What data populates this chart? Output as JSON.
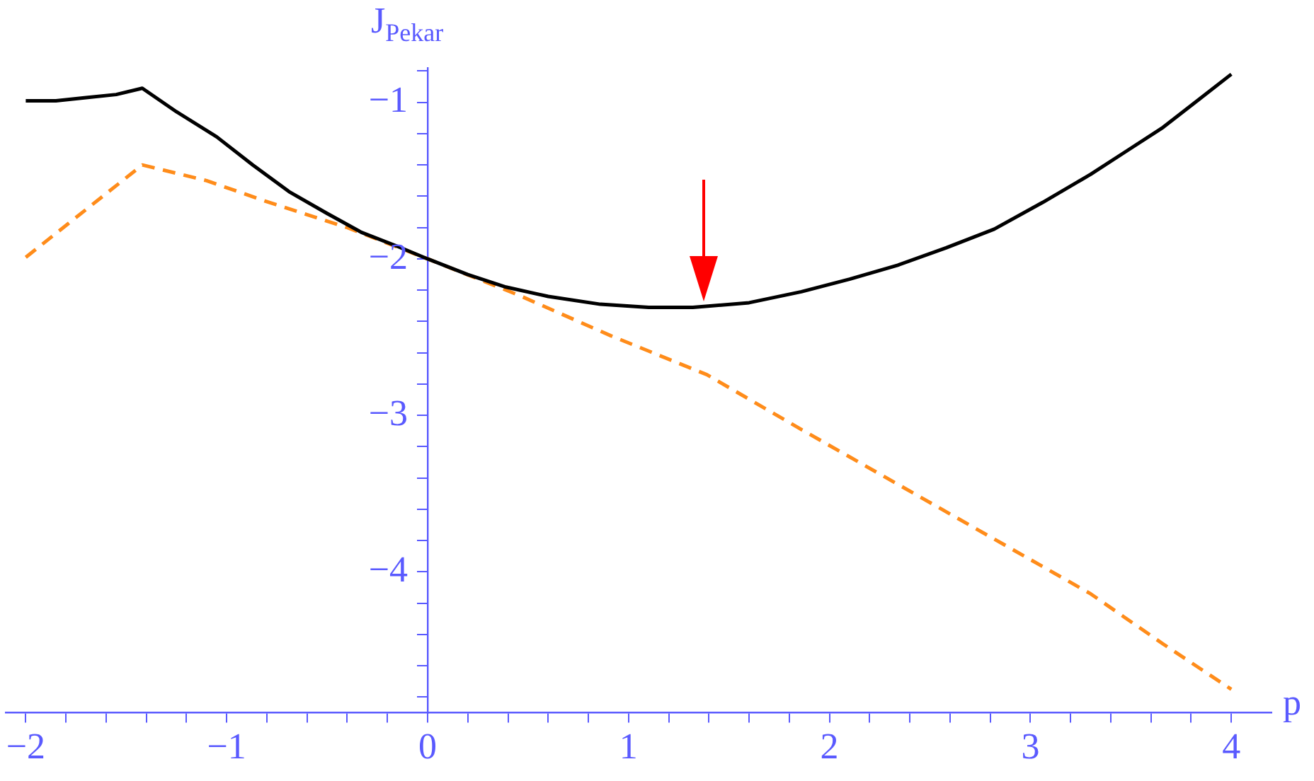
{
  "chart_data": {
    "type": "line",
    "xlabel": "p",
    "ylabel": "J$_{Pekar}$",
    "xlim": [
      -2.1,
      4.2
    ],
    "ylim": [
      -4.9,
      -0.78
    ],
    "xticks": [
      {
        "value": -2,
        "label": "−2"
      },
      {
        "value": -1.8,
        "label": null
      },
      {
        "value": -1.6,
        "label": null
      },
      {
        "value": -1.4,
        "label": null
      },
      {
        "value": -1.2,
        "label": null
      },
      {
        "value": -1,
        "label": "−1"
      },
      {
        "value": -0.8,
        "label": null
      },
      {
        "value": -0.6,
        "label": null
      },
      {
        "value": -0.4,
        "label": null
      },
      {
        "value": -0.2,
        "label": null
      },
      0,
      {
        "value": 0.2,
        "label": null
      },
      {
        "value": 0.4,
        "label": null
      },
      {
        "value": 0.6,
        "label": null
      },
      {
        "value": 0.8,
        "label": null
      },
      1,
      {
        "value": 1.2,
        "label": null
      },
      {
        "value": 1.4,
        "label": null
      },
      {
        "value": 1.6,
        "label": null
      },
      {
        "value": 1.8,
        "label": null
      },
      2,
      {
        "value": 2.2,
        "label": null
      },
      {
        "value": 2.4,
        "label": null
      },
      {
        "value": 2.6,
        "label": null
      },
      {
        "value": 2.8,
        "label": null
      },
      3,
      {
        "value": 3.2,
        "label": null
      },
      {
        "value": 3.4,
        "label": null
      },
      {
        "value": 3.6,
        "label": null
      },
      {
        "value": 3.8,
        "label": null
      },
      4
    ],
    "yticks": [
      {
        "value": -4.8,
        "label": null
      },
      {
        "value": -4.6,
        "label": null
      },
      {
        "value": -4.4,
        "label": null
      },
      {
        "value": -4.2,
        "label": null
      },
      {
        "value": -4,
        "label": "−4"
      },
      {
        "value": -3.8,
        "label": null
      },
      {
        "value": -3.6,
        "label": null
      },
      {
        "value": -3.4,
        "label": null
      },
      {
        "value": -3.2,
        "label": null
      },
      {
        "value": -3,
        "label": "−3"
      },
      {
        "value": -2.8,
        "label": null
      },
      {
        "value": -2.6,
        "label": null
      },
      {
        "value": -2.4,
        "label": null
      },
      {
        "value": -2.2,
        "label": null
      },
      {
        "value": -2,
        "label": "−2"
      },
      {
        "value": -1.8,
        "label": null
      },
      {
        "value": -1.6,
        "label": null
      },
      {
        "value": -1.4,
        "label": null
      },
      {
        "value": -1.2,
        "label": null
      },
      {
        "value": -1,
        "label": "−1"
      },
      {
        "value": -0.8,
        "label": null
      }
    ],
    "grid": false,
    "legend": false,
    "marker": "none",
    "series": [
      {
        "color": "#000000",
        "line_style": "solid",
        "x": [
          -2,
          -1.85,
          -1.7,
          -1.55,
          -1.42,
          -1.25,
          -1.05,
          -0.87,
          -0.69,
          -0.5,
          -0.33,
          -0.15,
          0,
          0.2,
          0.39,
          0.6,
          0.86,
          1.1,
          1.32,
          1.6,
          1.86,
          2.1,
          2.34,
          2.58,
          2.82,
          3.06,
          3.3,
          3.48,
          3.66,
          3.83,
          4
        ],
        "values": [
          -0.99,
          -0.99,
          -0.97,
          -0.95,
          -0.91,
          -1.06,
          -1.22,
          -1.4,
          -1.57,
          -1.71,
          -1.83,
          -1.92,
          -2,
          -2.1,
          -2.18,
          -2.24,
          -2.29,
          -2.31,
          -2.31,
          -2.28,
          -2.21,
          -2.13,
          -2.04,
          -1.93,
          -1.81,
          -1.64,
          -1.46,
          -1.31,
          -1.16,
          -0.99,
          -0.82
        ]
      },
      {
        "color": "#ff8c1a",
        "line_style": "dashed",
        "x": [
          -2,
          -1.42,
          -1.1,
          -0.81,
          -0.4,
          0,
          0.45,
          0.91,
          1.39,
          1.86,
          2.34,
          2.82,
          3.3,
          3.66,
          4
        ],
        "values": [
          -1.99,
          -1.4,
          -1.5,
          -1.63,
          -1.8,
          -2,
          -2.23,
          -2.49,
          -2.74,
          -3.09,
          -3.44,
          -3.79,
          -4.14,
          -4.46,
          -4.75
        ]
      }
    ]
  }
}
